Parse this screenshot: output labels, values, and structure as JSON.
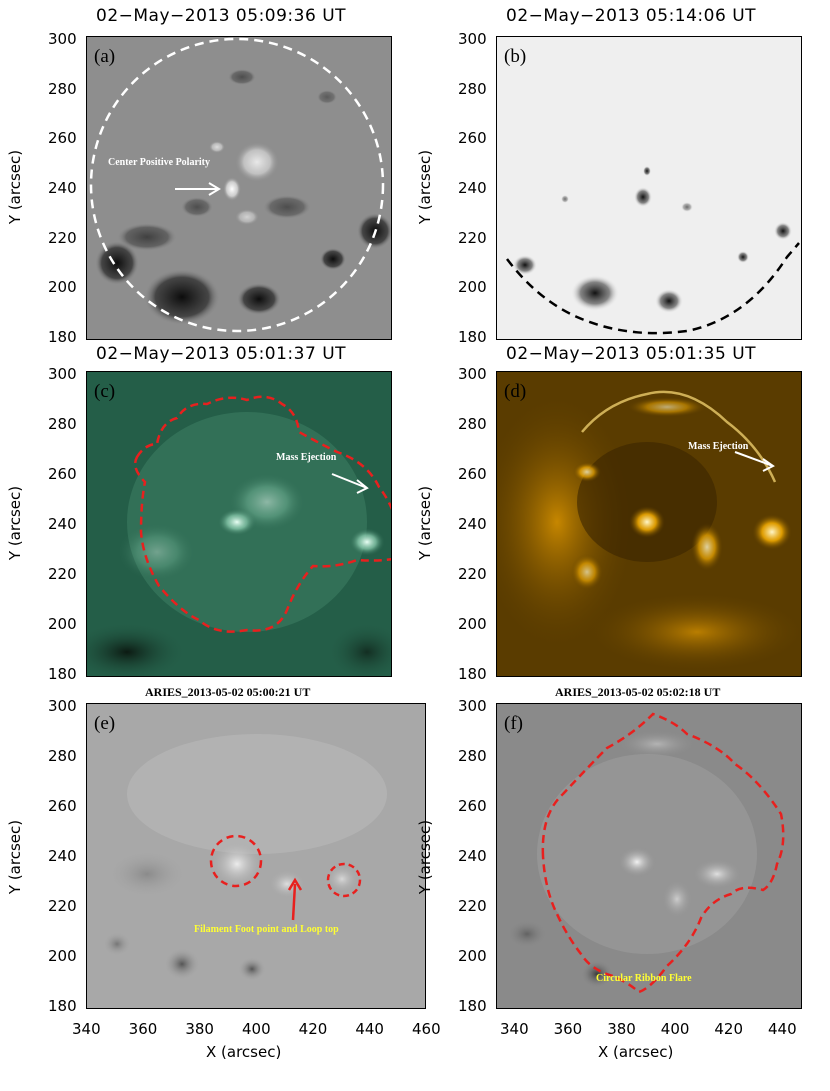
{
  "axes": {
    "y_label": "Y (arcsec)",
    "x_label": "X (arcsec)",
    "y_ticks": [
      "300",
      "280",
      "260",
      "240",
      "220",
      "200",
      "180"
    ],
    "x_ticks": [
      "340",
      "360",
      "380",
      "400",
      "420",
      "440",
      "460"
    ],
    "x_ticks_f": [
      "340",
      "360",
      "380",
      "400",
      "420",
      "440"
    ]
  },
  "panels": {
    "a": {
      "label": "(a)",
      "title": "02−May−2013 05:09:36 UT",
      "annotation": "Center Positive Polarity"
    },
    "b": {
      "label": "(b)",
      "title": "02−May−2013 05:14:06 UT"
    },
    "c": {
      "label": "(c)",
      "title": "02−May−2013 05:01:37 UT",
      "annotation": "Mass Ejection"
    },
    "d": {
      "label": "(d)",
      "title": "02−May−2013 05:01:35 UT",
      "annotation": "Mass Ejection"
    },
    "e": {
      "label": "(e)",
      "title": "ARIES_2013-05-02 05:00:21 UT",
      "annotation": "Filament Foot point and Loop top"
    },
    "f": {
      "label": "(f)",
      "title": "ARIES_2013-05-02 05:02:18 UT",
      "annotation": "Circular Ribbon Flare"
    }
  },
  "colors": {
    "contour_red": "#e8201e",
    "annotation_yellow": "#ffff33",
    "green_panel": "#2d6b52",
    "orange_panel": "#c98400",
    "gray_panel": "#8c8c8c"
  }
}
